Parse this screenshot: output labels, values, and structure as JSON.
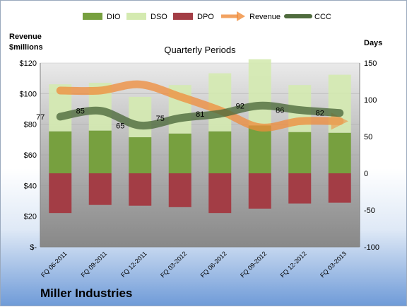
{
  "chart_data": {
    "type": "bar",
    "title": "Quarterly Periods",
    "company": "Miller Industries",
    "ylabel_left": [
      "Revenue",
      "$millions"
    ],
    "ylabel_right": "Days",
    "categories": [
      "FQ 06-2011",
      "FQ 09-2011",
      "FQ 12-2011",
      "FQ 03-2012",
      "FQ 06-2012",
      "FQ 09-2012",
      "FQ 12-2012",
      "FQ 03-2013"
    ],
    "y_left": {
      "min": 0,
      "max": 120,
      "ticks": [
        "$-",
        "$20",
        "$40",
        "$60",
        "$80",
        "$100",
        "$120"
      ],
      "tick_values": [
        0,
        20,
        40,
        60,
        80,
        100,
        120
      ]
    },
    "y_right": {
      "min": -100,
      "max": 150,
      "ticks": [
        "-100",
        "-50",
        "0",
        "50",
        "100",
        "150"
      ],
      "tick_values": [
        -100,
        -50,
        0,
        50,
        100,
        150
      ]
    },
    "series": [
      {
        "name": "DIO",
        "axis": "right",
        "kind": "bar",
        "color": "#77a03f",
        "values": [
          57,
          58,
          49,
          54,
          57,
          65,
          56,
          55
        ]
      },
      {
        "name": "DSO",
        "axis": "right",
        "kind": "bar-stacked",
        "color": "#d4eab0",
        "values": [
          64,
          65,
          55,
          66,
          79,
          90,
          64,
          79
        ]
      },
      {
        "name": "DPO",
        "axis": "right",
        "kind": "bar-negative",
        "color": "#a33d45",
        "values": [
          -54,
          -43,
          -44,
          -46,
          -54,
          -48,
          -41,
          -40
        ]
      },
      {
        "name": "Revenue",
        "axis": "left",
        "kind": "line",
        "color": "#f08c3a",
        "values": [
          102,
          102,
          106,
          98,
          89,
          78,
          82,
          82
        ]
      },
      {
        "name": "CCC",
        "axis": "right",
        "kind": "line",
        "color": "#4f6b3d",
        "values": [
          77,
          85,
          65,
          75,
          81,
          92,
          86,
          82
        ]
      }
    ],
    "ccc_labels": [
      "77",
      "85",
      "65",
      "75",
      "81",
      "92",
      "86",
      "82"
    ],
    "legend_position": "top"
  }
}
